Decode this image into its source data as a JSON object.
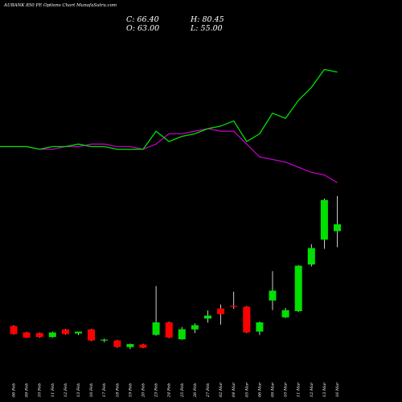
{
  "header": {
    "title": "AUBANK 850  PE Options  Chart MunafaSutra.com",
    "close_label": "C: 66.40",
    "high_label": "H: 80.45",
    "open_label": "O: 63.00",
    "low_label": "L: 55.00"
  },
  "colors": {
    "up": "#00e000",
    "down": "#ff0000",
    "line_green": "#00e000",
    "line_magenta": "#c000c0",
    "background": "#000000",
    "wick": "#ffffff"
  },
  "chart_data": {
    "type": "candlestick",
    "dates": [
      "06 Feb",
      "09 Feb",
      "10 Feb",
      "11 Feb",
      "12 Feb",
      "13 Feb",
      "16 Feb",
      "17 Feb",
      "18 Feb",
      "19 Feb",
      "20 Feb",
      "23 Feb",
      "24 Feb",
      "25 Feb",
      "26 Feb",
      "27 Feb",
      "02 Mar",
      "04 Mar",
      "05 Mar",
      "06 Mar",
      "09 Mar",
      "10 Mar",
      "11 Mar",
      "12 Mar",
      "13 Mar",
      "16 Mar"
    ],
    "candles": [
      {
        "open": 15.8,
        "high": 16.2,
        "low": 11.5,
        "close": 11.8
      },
      {
        "open": 12.6,
        "high": 12.9,
        "low": 9.8,
        "close": 10.0
      },
      {
        "open": 12.3,
        "high": 12.6,
        "low": 10.0,
        "close": 10.3
      },
      {
        "open": 10.3,
        "high": 13.0,
        "low": 10.0,
        "close": 12.6
      },
      {
        "open": 14.1,
        "high": 14.4,
        "low": 11.5,
        "close": 11.8
      },
      {
        "open": 12.1,
        "high": 13.0,
        "low": 11.3,
        "close": 13.0
      },
      {
        "open": 14.1,
        "high": 14.4,
        "low": 8.3,
        "close": 8.6
      },
      {
        "open": 8.6,
        "high": 9.5,
        "low": 7.7,
        "close": 9.0
      },
      {
        "open": 8.6,
        "high": 8.9,
        "low": 5.0,
        "close": 5.4
      },
      {
        "open": 5.3,
        "high": 7.1,
        "low": 4.3,
        "close": 6.8
      },
      {
        "open": 6.6,
        "high": 7.0,
        "low": 4.8,
        "close": 5.0
      },
      {
        "open": 11.4,
        "high": 35.7,
        "low": 11.0,
        "close": 17.6
      },
      {
        "open": 17.6,
        "high": 18.0,
        "low": 9.8,
        "close": 10.1
      },
      {
        "open": 9.2,
        "high": 15.3,
        "low": 8.9,
        "close": 14.2
      },
      {
        "open": 14.1,
        "high": 17.1,
        "low": 12.3,
        "close": 16.2
      },
      {
        "open": 19.5,
        "high": 23.5,
        "low": 17.5,
        "close": 21.0
      },
      {
        "open": 24.5,
        "high": 26.5,
        "low": 16.5,
        "close": 21.7
      },
      {
        "open": 25.8,
        "high": 32.9,
        "low": 24.3,
        "close": 25.6
      },
      {
        "open": 25.4,
        "high": 25.8,
        "low": 12.3,
        "close": 12.6
      },
      {
        "open": 13.0,
        "high": 18.0,
        "low": 11.3,
        "close": 17.6
      },
      {
        "open": 28.5,
        "high": 43.1,
        "low": 23.7,
        "close": 33.4
      },
      {
        "open": 20.1,
        "high": 24.8,
        "low": 19.8,
        "close": 23.7
      },
      {
        "open": 23.2,
        "high": 46.1,
        "low": 22.8,
        "close": 45.8
      },
      {
        "open": 46.4,
        "high": 56.5,
        "low": 45.4,
        "close": 54.6
      },
      {
        "open": 58.8,
        "high": 79.2,
        "low": 54.2,
        "close": 78.5
      },
      {
        "open": 63.0,
        "high": 80.45,
        "low": 55.0,
        "close": 66.4
      }
    ],
    "series": [
      {
        "values": [
          123,
          123,
          122,
          122,
          123,
          123,
          124,
          124,
          123,
          123,
          122,
          124,
          128,
          128,
          129,
          130,
          129,
          129,
          124,
          119,
          118,
          117,
          115,
          113,
          112,
          109
        ]
      },
      {
        "values": [
          123,
          123,
          122,
          123,
          123,
          124,
          123,
          123,
          122,
          122,
          122,
          129,
          125,
          127,
          128,
          130,
          131,
          133,
          125,
          128,
          136,
          134,
          141,
          146,
          153,
          152
        ]
      }
    ]
  }
}
